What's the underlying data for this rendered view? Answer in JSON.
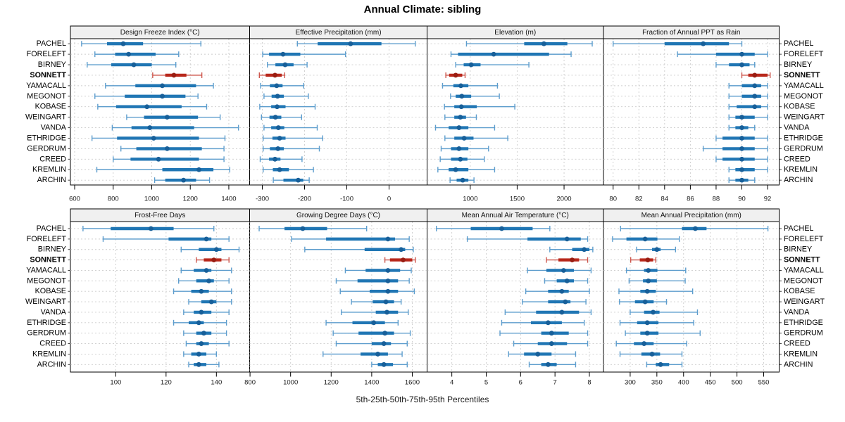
{
  "title": "Annual Climate: sibling",
  "caption": "5th-25th-50th-75th-95th Percentiles",
  "highlight_station": "SONNETT",
  "percentile_labels": [
    "5th",
    "25th",
    "50th",
    "75th",
    "95th"
  ],
  "stations": [
    "PACHEL",
    "FORELEFT",
    "BIRNEY",
    "SONNETT",
    "YAMACALL",
    "MEGONOT",
    "KOBASE",
    "WEINGART",
    "VANDA",
    "ETHRIDGE",
    "GERDRUM",
    "CREED",
    "KREMLIN",
    "ARCHIN"
  ],
  "colors": {
    "blue_whisker": "#5d9dcd",
    "blue_box": "#2076b4",
    "blue_dot": "#175f99",
    "red_whisker": "#cd564c",
    "red_box": "#b8271b",
    "red_dot": "#991d12",
    "grid": "#cccccc",
    "strip_bg": "#f0f0f0",
    "border": "#000000",
    "tick_text": "#1a1a1a"
  },
  "chart_data": {
    "type": "boxplot",
    "layout": "2 rows x 4 cols trellis, shared station category axis",
    "legend": "none",
    "grid": "dashed both directions",
    "panels": [
      {
        "title": "Design Freeze Index (°C)",
        "row": 0,
        "col": 0,
        "xdomain": [
          578,
          1508
        ],
        "xticks": [
          600,
          800,
          1000,
          1200,
          1400
        ],
        "values": [
          [
            636,
            768,
            852,
            955,
            1255
          ],
          [
            705,
            810,
            880,
            1020,
            1140
          ],
          [
            665,
            790,
            907,
            1000,
            1125
          ],
          [
            1005,
            1070,
            1115,
            1180,
            1260
          ],
          [
            760,
            915,
            1055,
            1230,
            1320
          ],
          [
            705,
            860,
            1055,
            1175,
            1240
          ],
          [
            720,
            815,
            975,
            1155,
            1285
          ],
          [
            870,
            960,
            1080,
            1240,
            1355
          ],
          [
            795,
            895,
            990,
            1220,
            1450
          ],
          [
            690,
            820,
            1010,
            1245,
            1380
          ],
          [
            840,
            920,
            1080,
            1260,
            1375
          ],
          [
            800,
            890,
            1035,
            1245,
            1375
          ],
          [
            715,
            1055,
            1245,
            1320,
            1405
          ],
          [
            1015,
            1070,
            1165,
            1230,
            1300
          ]
        ]
      },
      {
        "title": "Effective Precipitation (mm)",
        "row": 0,
        "col": 1,
        "xdomain": [
          -330,
          90
        ],
        "xticks": [
          -300,
          -200,
          -100,
          0
        ],
        "values": [
          [
            -217,
            -169,
            -91,
            -18,
            62
          ],
          [
            -299,
            -284,
            -251,
            -210,
            -103
          ],
          [
            -288,
            -269,
            -246,
            -226,
            -194
          ],
          [
            -307,
            -292,
            -270,
            -254,
            -247
          ],
          [
            -304,
            -282,
            -266,
            -252,
            -202
          ],
          [
            -296,
            -278,
            -264,
            -249,
            -191
          ],
          [
            -306,
            -279,
            -265,
            -245,
            -175
          ],
          [
            -302,
            -283,
            -269,
            -255,
            -207
          ],
          [
            -296,
            -279,
            -262,
            -248,
            -170
          ],
          [
            -298,
            -276,
            -259,
            -245,
            -157
          ],
          [
            -298,
            -282,
            -263,
            -249,
            -165
          ],
          [
            -305,
            -284,
            -270,
            -257,
            -206
          ],
          [
            -298,
            -275,
            -259,
            -237,
            -179
          ],
          [
            -274,
            -250,
            -215,
            -203,
            -189
          ]
        ]
      },
      {
        "title": "Elevation (m)",
        "row": 0,
        "col": 2,
        "xdomain": [
          540,
          2420
        ],
        "xticks": [
          1000,
          1500,
          2000
        ],
        "values": [
          [
            960,
            1575,
            1785,
            2035,
            2300
          ],
          [
            795,
            870,
            1250,
            1840,
            2075
          ],
          [
            845,
            930,
            1010,
            1110,
            1625
          ],
          [
            740,
            775,
            845,
            915,
            945
          ],
          [
            705,
            820,
            900,
            980,
            1290
          ],
          [
            790,
            845,
            910,
            1010,
            1310
          ],
          [
            725,
            830,
            905,
            1070,
            1475
          ],
          [
            730,
            830,
            895,
            955,
            1065
          ],
          [
            630,
            770,
            880,
            980,
            1260
          ],
          [
            730,
            830,
            935,
            1035,
            1400
          ],
          [
            690,
            795,
            880,
            980,
            1195
          ],
          [
            680,
            795,
            895,
            970,
            1150
          ],
          [
            655,
            770,
            845,
            980,
            1260
          ],
          [
            785,
            855,
            920,
            980,
            1040
          ]
        ]
      },
      {
        "title": "Fraction of Annual PPT as Rain",
        "row": 0,
        "col": 3,
        "xdomain": [
          79.25,
          92.9
        ],
        "xticks": [
          80,
          82,
          84,
          86,
          88,
          90,
          92
        ],
        "values": [
          [
            80,
            84,
            87,
            89,
            90
          ],
          [
            85,
            88,
            90,
            91,
            92
          ],
          [
            88,
            89,
            90,
            90.6,
            91
          ],
          [
            90,
            90.5,
            91,
            92,
            92.2
          ],
          [
            89,
            90,
            91,
            91.5,
            92
          ],
          [
            89,
            90,
            91,
            91.5,
            92
          ],
          [
            89,
            89.6,
            91,
            91.5,
            92
          ],
          [
            89,
            89.5,
            90,
            91,
            92
          ],
          [
            89,
            89.5,
            90,
            90.5,
            91
          ],
          [
            88,
            88.5,
            90,
            91,
            92
          ],
          [
            87,
            88.5,
            90,
            91,
            92
          ],
          [
            88,
            88.5,
            90,
            91,
            92
          ],
          [
            89,
            89.5,
            90,
            91,
            92
          ],
          [
            89,
            89.5,
            90,
            90.5,
            91
          ]
        ]
      },
      {
        "title": "Frost-Free Days",
        "row": 1,
        "col": 0,
        "xdomain": [
          82,
          153.2
        ],
        "xticks": [
          100,
          120,
          140
        ],
        "values": [
          [
            87,
            98,
            114,
            123,
            139
          ],
          [
            95,
            121,
            136,
            138,
            145
          ],
          [
            126,
            133,
            140,
            142,
            149
          ],
          [
            132,
            135,
            139,
            142,
            145
          ],
          [
            126,
            131,
            136,
            138,
            146
          ],
          [
            125,
            132,
            137,
            139,
            145
          ],
          [
            123,
            130,
            134,
            137,
            146
          ],
          [
            129,
            134,
            138,
            140,
            146
          ],
          [
            127,
            131,
            134,
            138,
            145
          ],
          [
            123,
            129,
            133,
            135,
            144
          ],
          [
            127,
            132,
            135,
            138,
            144
          ],
          [
            128,
            132,
            134,
            137,
            145
          ],
          [
            127,
            130,
            133,
            136,
            140
          ],
          [
            129,
            131,
            133,
            136,
            141
          ]
        ]
      },
      {
        "title": "Growing Degree Days (°C)",
        "row": 1,
        "col": 1,
        "xdomain": [
          798,
          1673
        ],
        "xticks": [
          800,
          1000,
          1200,
          1400,
          1600
        ],
        "values": [
          [
            845,
            970,
            1060,
            1180,
            1375
          ],
          [
            1005,
            1175,
            1480,
            1515,
            1585
          ],
          [
            1070,
            1365,
            1545,
            1565,
            1605
          ],
          [
            1465,
            1490,
            1555,
            1600,
            1615
          ],
          [
            1270,
            1370,
            1480,
            1540,
            1595
          ],
          [
            1225,
            1330,
            1480,
            1530,
            1585
          ],
          [
            1245,
            1390,
            1480,
            1530,
            1610
          ],
          [
            1300,
            1405,
            1470,
            1510,
            1545
          ],
          [
            1250,
            1420,
            1475,
            1530,
            1580
          ],
          [
            1175,
            1305,
            1410,
            1465,
            1530
          ],
          [
            1210,
            1335,
            1465,
            1510,
            1590
          ],
          [
            1225,
            1400,
            1460,
            1495,
            1575
          ],
          [
            1160,
            1345,
            1430,
            1480,
            1550
          ],
          [
            1400,
            1430,
            1460,
            1505,
            1575
          ]
        ]
      },
      {
        "title": "Mean Annual Air Temperature (°C)",
        "row": 1,
        "col": 2,
        "xdomain": [
          3.28,
          8.41
        ],
        "xticks": [
          4,
          5,
          6,
          7,
          8
        ],
        "values": [
          [
            3.55,
            4.55,
            5.45,
            6.35,
            6.85
          ],
          [
            4.45,
            6.2,
            7.35,
            7.75,
            7.95
          ],
          [
            6.85,
            7.5,
            7.85,
            8.0,
            8.1
          ],
          [
            6.75,
            7.1,
            7.5,
            7.7,
            7.95
          ],
          [
            6.2,
            6.75,
            7.25,
            7.55,
            8.05
          ],
          [
            6.7,
            7.05,
            7.35,
            7.55,
            7.95
          ],
          [
            6.15,
            6.8,
            7.2,
            7.4,
            8.0
          ],
          [
            6.05,
            6.8,
            7.3,
            7.45,
            7.9
          ],
          [
            5.55,
            6.45,
            7.2,
            7.7,
            8.05
          ],
          [
            5.45,
            6.3,
            6.8,
            7.2,
            7.85
          ],
          [
            5.4,
            6.6,
            6.9,
            7.4,
            7.95
          ],
          [
            5.8,
            6.5,
            6.9,
            7.35,
            7.95
          ],
          [
            5.65,
            6.1,
            6.5,
            6.9,
            7.6
          ],
          [
            6.25,
            6.6,
            6.8,
            7.05,
            7.6
          ]
        ]
      },
      {
        "title": "Mean Annual Precipitation (mm)",
        "row": 1,
        "col": 3,
        "xdomain": [
          250,
          579
        ],
        "xticks": [
          300,
          350,
          400,
          450,
          500,
          550
        ],
        "values": [
          [
            282,
            397,
            422,
            443,
            558
          ],
          [
            267,
            293,
            328,
            351,
            392
          ],
          [
            312,
            341,
            350,
            357,
            385
          ],
          [
            301,
            318,
            333,
            343,
            348
          ],
          [
            293,
            326,
            334,
            351,
            404
          ],
          [
            298,
            324,
            334,
            350,
            403
          ],
          [
            279,
            319,
            332,
            348,
            417
          ],
          [
            280,
            309,
            328,
            344,
            368
          ],
          [
            300,
            326,
            343,
            355,
            426
          ],
          [
            281,
            313,
            332,
            353,
            419
          ],
          [
            291,
            319,
            332,
            353,
            431
          ],
          [
            274,
            307,
            326,
            344,
            406
          ],
          [
            281,
            321,
            341,
            356,
            397
          ],
          [
            331,
            348,
            357,
            373,
            397
          ]
        ]
      }
    ]
  }
}
